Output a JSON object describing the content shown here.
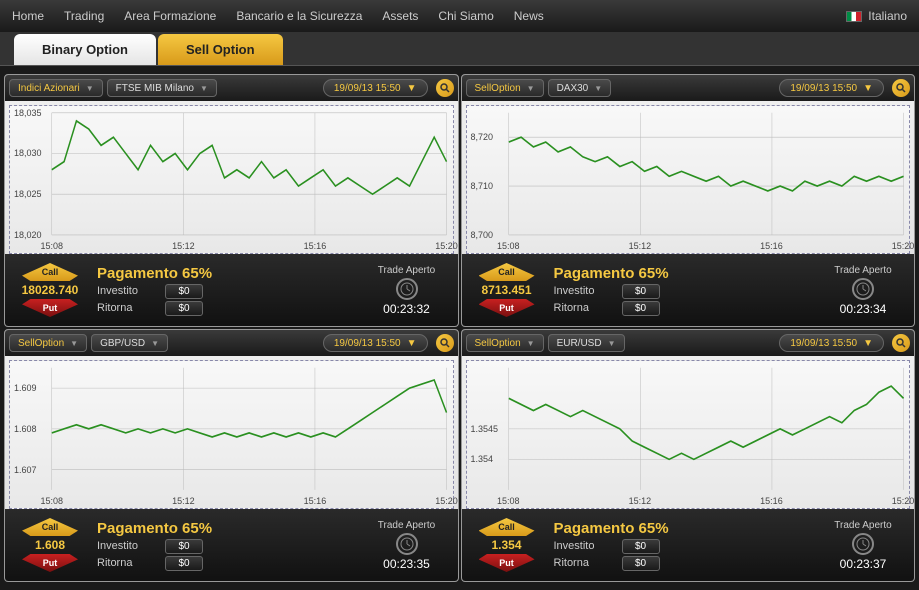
{
  "nav": {
    "items": [
      "Home",
      "Trading",
      "Area Formazione",
      "Bancario e la Sicurezza",
      "Assets",
      "Chi Siamo",
      "News"
    ],
    "language": "Italiano"
  },
  "tabs": {
    "active": "Binary Option",
    "inactive": "Sell Option"
  },
  "panels": [
    {
      "dropdown1": "Indici Azionari",
      "dropdown2": "FTSE MIB Milano",
      "date": "19/09/13 15:50",
      "price": "18028.740",
      "payout": "Pagamento 65%",
      "invest_label": "Investito",
      "return_label": "Ritorna",
      "invest_val": "$0",
      "return_val": "$0",
      "trade_label": "Trade Aperto",
      "timer": "00:23:32",
      "call": "Call",
      "put": "Put",
      "chart": {
        "line_color": "#2a9020",
        "grid_color": "#bbb",
        "yticks": [
          "18,035",
          "18,030",
          "18,025",
          "18,020"
        ],
        "xticks": [
          "15:08",
          "15:12",
          "15:16",
          "15:20"
        ],
        "ylim": [
          18020,
          18035
        ],
        "xrange": 16,
        "points": [
          [
            0,
            18028
          ],
          [
            0.5,
            18029
          ],
          [
            1,
            18034
          ],
          [
            1.5,
            18033
          ],
          [
            2,
            18031
          ],
          [
            2.5,
            18032
          ],
          [
            3,
            18030
          ],
          [
            3.5,
            18028
          ],
          [
            4,
            18031
          ],
          [
            4.5,
            18029
          ],
          [
            5,
            18030
          ],
          [
            5.5,
            18028
          ],
          [
            6,
            18030
          ],
          [
            6.5,
            18031
          ],
          [
            7,
            18027
          ],
          [
            7.5,
            18028
          ],
          [
            8,
            18027
          ],
          [
            8.5,
            18029
          ],
          [
            9,
            18027
          ],
          [
            9.5,
            18028
          ],
          [
            10,
            18026
          ],
          [
            10.5,
            18027
          ],
          [
            11,
            18028
          ],
          [
            11.5,
            18026
          ],
          [
            12,
            18027
          ],
          [
            12.5,
            18026
          ],
          [
            13,
            18025
          ],
          [
            13.5,
            18026
          ],
          [
            14,
            18027
          ],
          [
            14.5,
            18026
          ],
          [
            15,
            18029
          ],
          [
            15.5,
            18032
          ],
          [
            16,
            18029
          ]
        ]
      }
    },
    {
      "dropdown1": "SellOption",
      "dropdown2": "DAX30",
      "date": "19/09/13 15:50",
      "price": "8713.451",
      "payout": "Pagamento 65%",
      "invest_label": "Investito",
      "return_label": "Ritorna",
      "invest_val": "$0",
      "return_val": "$0",
      "trade_label": "Trade Aperto",
      "timer": "00:23:34",
      "call": "Call",
      "put": "Put",
      "chart": {
        "line_color": "#2a9020",
        "grid_color": "#bbb",
        "yticks": [
          "8,720",
          "8,710",
          "8,700"
        ],
        "xticks": [
          "15:08",
          "15:12",
          "15:16",
          "15:20"
        ],
        "ylim": [
          8700,
          8725
        ],
        "xrange": 16,
        "points": [
          [
            0,
            8719
          ],
          [
            0.5,
            8720
          ],
          [
            1,
            8718
          ],
          [
            1.5,
            8719
          ],
          [
            2,
            8717
          ],
          [
            2.5,
            8718
          ],
          [
            3,
            8716
          ],
          [
            3.5,
            8715
          ],
          [
            4,
            8716
          ],
          [
            4.5,
            8714
          ],
          [
            5,
            8715
          ],
          [
            5.5,
            8713
          ],
          [
            6,
            8714
          ],
          [
            6.5,
            8712
          ],
          [
            7,
            8713
          ],
          [
            7.5,
            8712
          ],
          [
            8,
            8711
          ],
          [
            8.5,
            8712
          ],
          [
            9,
            8710
          ],
          [
            9.5,
            8711
          ],
          [
            10,
            8710
          ],
          [
            10.5,
            8709
          ],
          [
            11,
            8710
          ],
          [
            11.5,
            8709
          ],
          [
            12,
            8711
          ],
          [
            12.5,
            8710
          ],
          [
            13,
            8711
          ],
          [
            13.5,
            8710
          ],
          [
            14,
            8712
          ],
          [
            14.5,
            8711
          ],
          [
            15,
            8712
          ],
          [
            15.5,
            8711
          ],
          [
            16,
            8712
          ]
        ]
      }
    },
    {
      "dropdown1": "SellOption",
      "dropdown2": "GBP/USD",
      "date": "19/09/13 15:50",
      "price": "1.608",
      "payout": "Pagamento 65%",
      "invest_label": "Investito",
      "return_label": "Ritorna",
      "invest_val": "$0",
      "return_val": "$0",
      "trade_label": "Trade Aperto",
      "timer": "00:23:35",
      "call": "Call",
      "put": "Put",
      "chart": {
        "line_color": "#2a9020",
        "grid_color": "#bbb",
        "yticks": [
          "1.609",
          "1.608",
          "1.607"
        ],
        "xticks": [
          "15:08",
          "15:12",
          "15:16",
          "15:20"
        ],
        "ylim": [
          1.6065,
          1.6095
        ],
        "xrange": 16,
        "points": [
          [
            0,
            1.6079
          ],
          [
            0.5,
            1.608
          ],
          [
            1,
            1.6081
          ],
          [
            1.5,
            1.608
          ],
          [
            2,
            1.6081
          ],
          [
            2.5,
            1.608
          ],
          [
            3,
            1.6079
          ],
          [
            3.5,
            1.608
          ],
          [
            4,
            1.6079
          ],
          [
            4.5,
            1.608
          ],
          [
            5,
            1.6079
          ],
          [
            5.5,
            1.608
          ],
          [
            6,
            1.6079
          ],
          [
            6.5,
            1.6078
          ],
          [
            7,
            1.6079
          ],
          [
            7.5,
            1.6078
          ],
          [
            8,
            1.6079
          ],
          [
            8.5,
            1.6078
          ],
          [
            9,
            1.6079
          ],
          [
            9.5,
            1.6078
          ],
          [
            10,
            1.6079
          ],
          [
            10.5,
            1.6078
          ],
          [
            11,
            1.6079
          ],
          [
            11.5,
            1.6078
          ],
          [
            12,
            1.608
          ],
          [
            12.5,
            1.6082
          ],
          [
            13,
            1.6084
          ],
          [
            13.5,
            1.6086
          ],
          [
            14,
            1.6088
          ],
          [
            14.5,
            1.609
          ],
          [
            15,
            1.6091
          ],
          [
            15.5,
            1.6092
          ],
          [
            16,
            1.6084
          ]
        ]
      }
    },
    {
      "dropdown1": "SellOption",
      "dropdown2": "EUR/USD",
      "date": "19/09/13 15:50",
      "price": "1.354",
      "payout": "Pagamento 65%",
      "invest_label": "Investito",
      "return_label": "Ritorna",
      "invest_val": "$0",
      "return_val": "$0",
      "trade_label": "Trade Aperto",
      "timer": "00:23:37",
      "call": "Call",
      "put": "Put",
      "chart": {
        "line_color": "#2a9020",
        "grid_color": "#bbb",
        "yticks": [
          "1.3545",
          "1.354"
        ],
        "xticks": [
          "15:08",
          "15:12",
          "15:16",
          "15:20"
        ],
        "ylim": [
          1.3535,
          1.3555
        ],
        "xrange": 16,
        "points": [
          [
            0,
            1.355
          ],
          [
            0.5,
            1.3549
          ],
          [
            1,
            1.3548
          ],
          [
            1.5,
            1.3549
          ],
          [
            2,
            1.3548
          ],
          [
            2.5,
            1.3547
          ],
          [
            3,
            1.3548
          ],
          [
            3.5,
            1.3547
          ],
          [
            4,
            1.3546
          ],
          [
            4.5,
            1.3545
          ],
          [
            5,
            1.3543
          ],
          [
            5.5,
            1.3542
          ],
          [
            6,
            1.3541
          ],
          [
            6.5,
            1.354
          ],
          [
            7,
            1.3541
          ],
          [
            7.5,
            1.354
          ],
          [
            8,
            1.3541
          ],
          [
            8.5,
            1.3542
          ],
          [
            9,
            1.3543
          ],
          [
            9.5,
            1.3542
          ],
          [
            10,
            1.3543
          ],
          [
            10.5,
            1.3544
          ],
          [
            11,
            1.3545
          ],
          [
            11.5,
            1.3544
          ],
          [
            12,
            1.3545
          ],
          [
            12.5,
            1.3546
          ],
          [
            13,
            1.3547
          ],
          [
            13.5,
            1.3546
          ],
          [
            14,
            1.3548
          ],
          [
            14.5,
            1.3549
          ],
          [
            15,
            1.3551
          ],
          [
            15.5,
            1.3552
          ],
          [
            16,
            1.355
          ]
        ]
      }
    }
  ]
}
